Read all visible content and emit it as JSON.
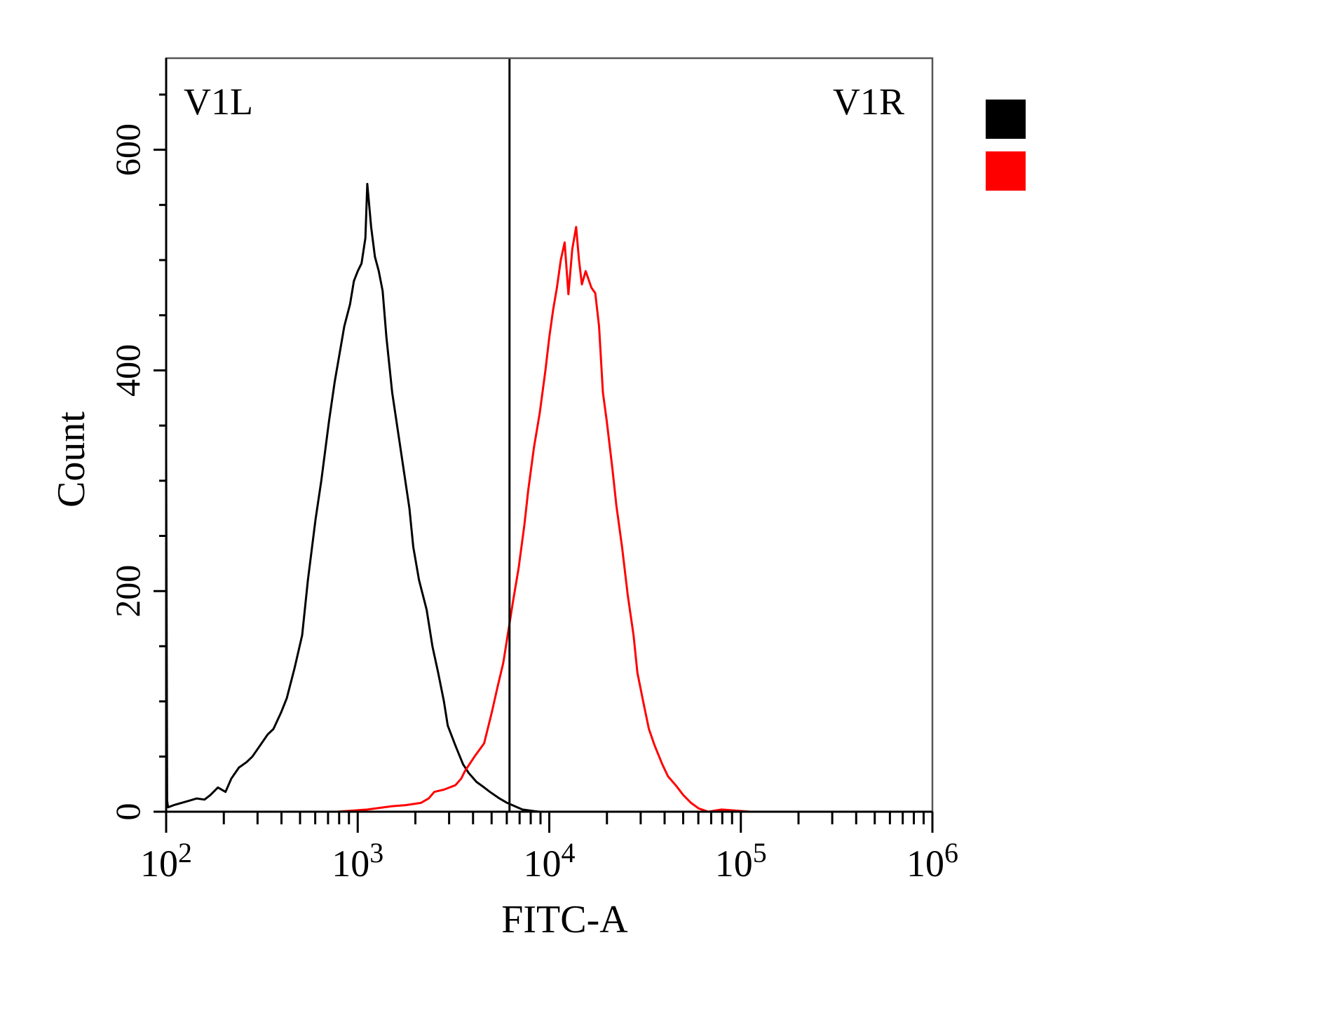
{
  "chart_data": {
    "type": "line",
    "title": "",
    "xlabel": "FITC-A",
    "ylabel": "Count",
    "xscale": "log",
    "xlim": [
      100,
      1000000
    ],
    "ylim": [
      0,
      683
    ],
    "x_ticks": [
      {
        "base": "10",
        "exp": "2"
      },
      {
        "base": "10",
        "exp": "3"
      },
      {
        "base": "10",
        "exp": "4"
      },
      {
        "base": "10",
        "exp": "5"
      },
      {
        "base": "10",
        "exp": "6"
      }
    ],
    "y_ticks": [
      "0",
      "200",
      "400",
      "600"
    ],
    "y_tick_values": [
      0,
      200,
      400,
      600
    ],
    "y_minor_step": 50,
    "grid": false,
    "gate": {
      "x_value": 6200,
      "left_label": "V1L",
      "right_label": "V1R"
    },
    "legend": {
      "placement": "right",
      "entries": [
        {
          "name": "",
          "color": "#000000"
        },
        {
          "name": "",
          "color": "#ff0000"
        }
      ]
    },
    "series": [
      {
        "name": "black",
        "color": "#000000",
        "x_log10": [
          2.0,
          2.005,
          2.01,
          2.04,
          2.08,
          2.12,
          2.16,
          2.2,
          2.23,
          2.27,
          2.31,
          2.34,
          2.38,
          2.42,
          2.45,
          2.49,
          2.53,
          2.56,
          2.6,
          2.63,
          2.67,
          2.71,
          2.74,
          2.78,
          2.81,
          2.85,
          2.88,
          2.91,
          2.93,
          2.96,
          2.98,
          3.0,
          3.02,
          3.04,
          3.05,
          3.07,
          3.09,
          3.11,
          3.13,
          3.15,
          3.18,
          3.21,
          3.24,
          3.27,
          3.29,
          3.32,
          3.36,
          3.39,
          3.42,
          3.45,
          3.47,
          3.51,
          3.55,
          3.58,
          3.62,
          3.66,
          3.69,
          3.74,
          3.78,
          3.82,
          3.86,
          3.9,
          3.95
        ],
        "y": [
          323,
          10,
          4,
          6,
          8,
          10,
          12,
          11,
          15,
          22,
          18,
          30,
          40,
          45,
          50,
          60,
          70,
          75,
          90,
          103,
          130,
          160,
          210,
          265,
          300,
          354,
          390,
          420,
          440,
          460,
          481,
          490,
          497,
          520,
          569,
          530,
          503,
          490,
          472,
          430,
          380,
          345,
          310,
          275,
          240,
          210,
          183,
          150,
          126,
          100,
          78,
          60,
          43,
          35,
          27,
          22,
          18,
          12,
          8,
          5,
          2,
          1,
          0
        ]
      },
      {
        "name": "red",
        "color": "#ff0000",
        "x_log10": [
          2.0,
          2.89,
          3.05,
          3.18,
          3.25,
          3.33,
          3.37,
          3.4,
          3.45,
          3.51,
          3.54,
          3.56,
          3.61,
          3.66,
          3.7,
          3.73,
          3.76,
          3.78,
          3.81,
          3.84,
          3.87,
          3.89,
          3.92,
          3.95,
          3.98,
          4.0,
          4.02,
          4.04,
          4.06,
          4.08,
          4.1,
          4.12,
          4.14,
          4.155,
          4.17,
          4.19,
          4.22,
          4.24,
          4.26,
          4.28,
          4.3,
          4.33,
          4.35,
          4.38,
          4.41,
          4.44,
          4.46,
          4.49,
          4.52,
          4.55,
          4.59,
          4.62,
          4.66,
          4.7,
          4.74,
          4.78,
          4.83,
          4.9,
          5.05
        ],
        "y": [
          0,
          0,
          2,
          5,
          6,
          8,
          12,
          18,
          20,
          24,
          30,
          37,
          50,
          62,
          90,
          113,
          135,
          157,
          190,
          221,
          260,
          291,
          330,
          361,
          400,
          430,
          455,
          475,
          500,
          516,
          469,
          510,
          530,
          500,
          478,
          490,
          475,
          470,
          440,
          380,
          354,
          310,
          278,
          240,
          196,
          160,
          126,
          100,
          75,
          60,
          43,
          32,
          24,
          15,
          8,
          3,
          0,
          2,
          0
        ]
      }
    ]
  }
}
